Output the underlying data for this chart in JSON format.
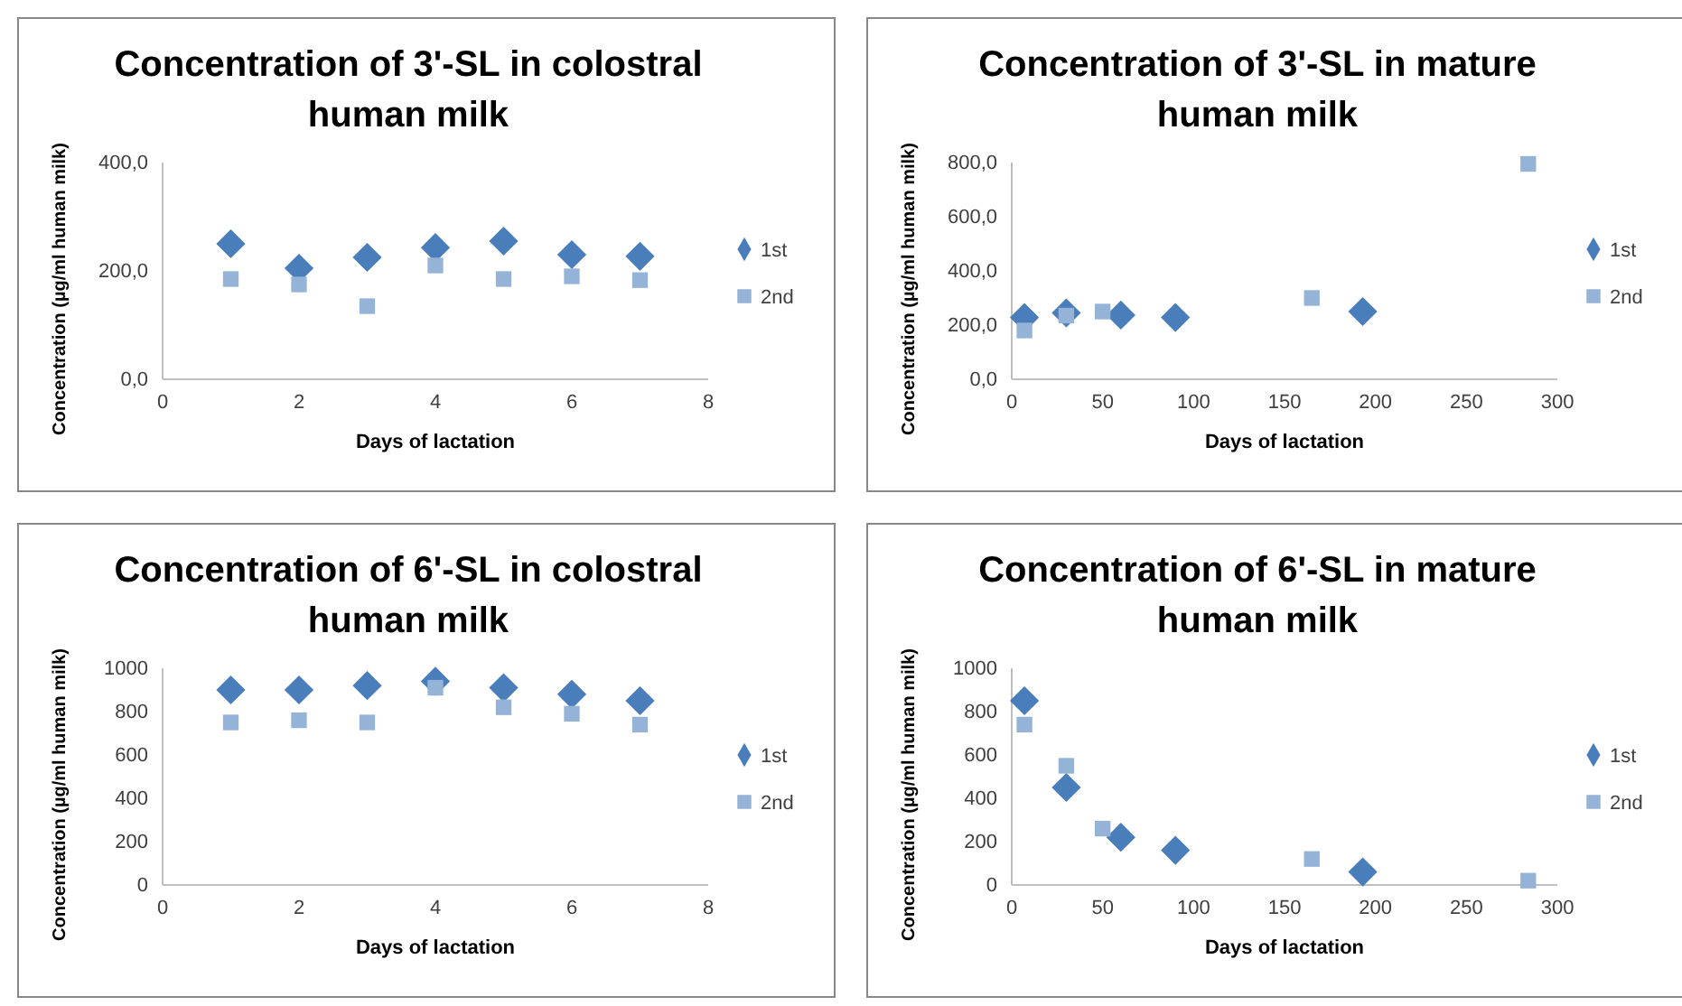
{
  "chart_data": [
    {
      "type": "scatter",
      "title": "Concentration of 3'-SL in colostral human milk",
      "xlabel": "Days of lactation",
      "ylabel": "Concentration (µg/ml human milk)",
      "xlim": [
        0,
        8
      ],
      "xticks": [
        0,
        2,
        4,
        6,
        8
      ],
      "ylim": [
        0,
        400
      ],
      "yticks": [
        {
          "value": 0,
          "label": "0,0"
        },
        {
          "value": 200,
          "label": "200,0"
        },
        {
          "value": 400,
          "label": "400,0"
        }
      ],
      "grid": false,
      "legend": "right",
      "series": [
        {
          "name": "1st",
          "color": "#4a7ebb",
          "marker": "diamond",
          "x": [
            1,
            2,
            3,
            4,
            5,
            6,
            7
          ],
          "values": [
            250,
            205,
            225,
            243,
            255,
            230,
            227
          ]
        },
        {
          "name": "2nd",
          "color": "#95b3d7",
          "marker": "square",
          "x": [
            1,
            2,
            3,
            4,
            5,
            6,
            7
          ],
          "values": [
            185,
            175,
            135,
            210,
            185,
            190,
            183
          ]
        }
      ]
    },
    {
      "type": "scatter",
      "title": "Concentration of 3'-SL in mature human milk",
      "xlabel": "Days of lactation",
      "ylabel": "Concentration (µg/ml human milk)",
      "xlim": [
        0,
        300
      ],
      "xticks": [
        0,
        50,
        100,
        150,
        200,
        250,
        300
      ],
      "ylim": [
        0,
        800
      ],
      "yticks": [
        {
          "value": 0,
          "label": "0,0"
        },
        {
          "value": 200,
          "label": "200,0"
        },
        {
          "value": 400,
          "label": "400,0"
        },
        {
          "value": 600,
          "label": "600,0"
        },
        {
          "value": 800,
          "label": "800,0"
        }
      ],
      "grid": false,
      "legend": "right",
      "series": [
        {
          "name": "1st",
          "color": "#4a7ebb",
          "marker": "diamond",
          "x": [
            7,
            30,
            60,
            90,
            193
          ],
          "values": [
            228,
            245,
            237,
            228,
            250
          ]
        },
        {
          "name": "2nd",
          "color": "#95b3d7",
          "marker": "square",
          "x": [
            7,
            30,
            50,
            165,
            284
          ],
          "values": [
            180,
            235,
            250,
            300,
            795
          ]
        }
      ]
    },
    {
      "type": "scatter",
      "title": "Concentration of 6'-SL in colostral human milk",
      "xlabel": "Days of lactation",
      "ylabel": "Concentration (µg/ml human milk)",
      "xlim": [
        0,
        8
      ],
      "xticks": [
        0,
        2,
        4,
        6,
        8
      ],
      "ylim": [
        0,
        1000
      ],
      "yticks": [
        0,
        200,
        400,
        600,
        800,
        1000
      ],
      "grid": false,
      "legend": "right",
      "series": [
        {
          "name": "1st",
          "color": "#4a7ebb",
          "marker": "diamond",
          "x": [
            1,
            2,
            3,
            4,
            5,
            6,
            7
          ],
          "values": [
            900,
            900,
            920,
            940,
            910,
            880,
            850
          ]
        },
        {
          "name": "2nd",
          "color": "#95b3d7",
          "marker": "square",
          "x": [
            1,
            2,
            3,
            4,
            5,
            6,
            7
          ],
          "values": [
            750,
            760,
            750,
            910,
            820,
            790,
            740
          ]
        }
      ]
    },
    {
      "type": "scatter",
      "title": "Concentration of 6'-SL in mature human milk",
      "xlabel": "Days of lactation",
      "ylabel": "Concentration (µg/ml human milk)",
      "xlim": [
        0,
        300
      ],
      "xticks": [
        0,
        50,
        100,
        150,
        200,
        250,
        300
      ],
      "ylim": [
        0,
        1000
      ],
      "yticks": [
        0,
        200,
        400,
        600,
        800,
        1000
      ],
      "grid": false,
      "legend": "right",
      "series": [
        {
          "name": "1st",
          "color": "#4a7ebb",
          "marker": "diamond",
          "x": [
            7,
            30,
            60,
            90,
            193
          ],
          "values": [
            850,
            450,
            220,
            160,
            60
          ]
        },
        {
          "name": "2nd",
          "color": "#95b3d7",
          "marker": "square",
          "x": [
            7,
            30,
            50,
            165,
            284
          ],
          "values": [
            740,
            550,
            260,
            120,
            20
          ]
        }
      ]
    }
  ]
}
